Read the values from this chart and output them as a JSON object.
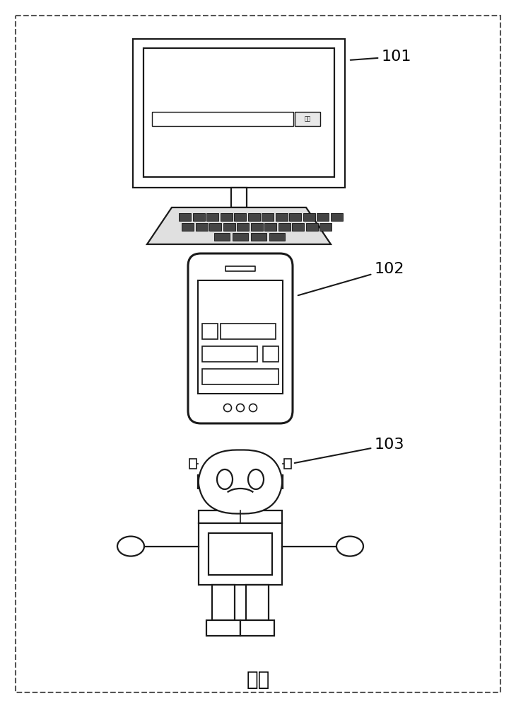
{
  "line_color": "#1a1a1a",
  "label_101": "101",
  "label_102": "102",
  "label_103": "103",
  "bottom_text": "终端",
  "search_text": "搜索"
}
